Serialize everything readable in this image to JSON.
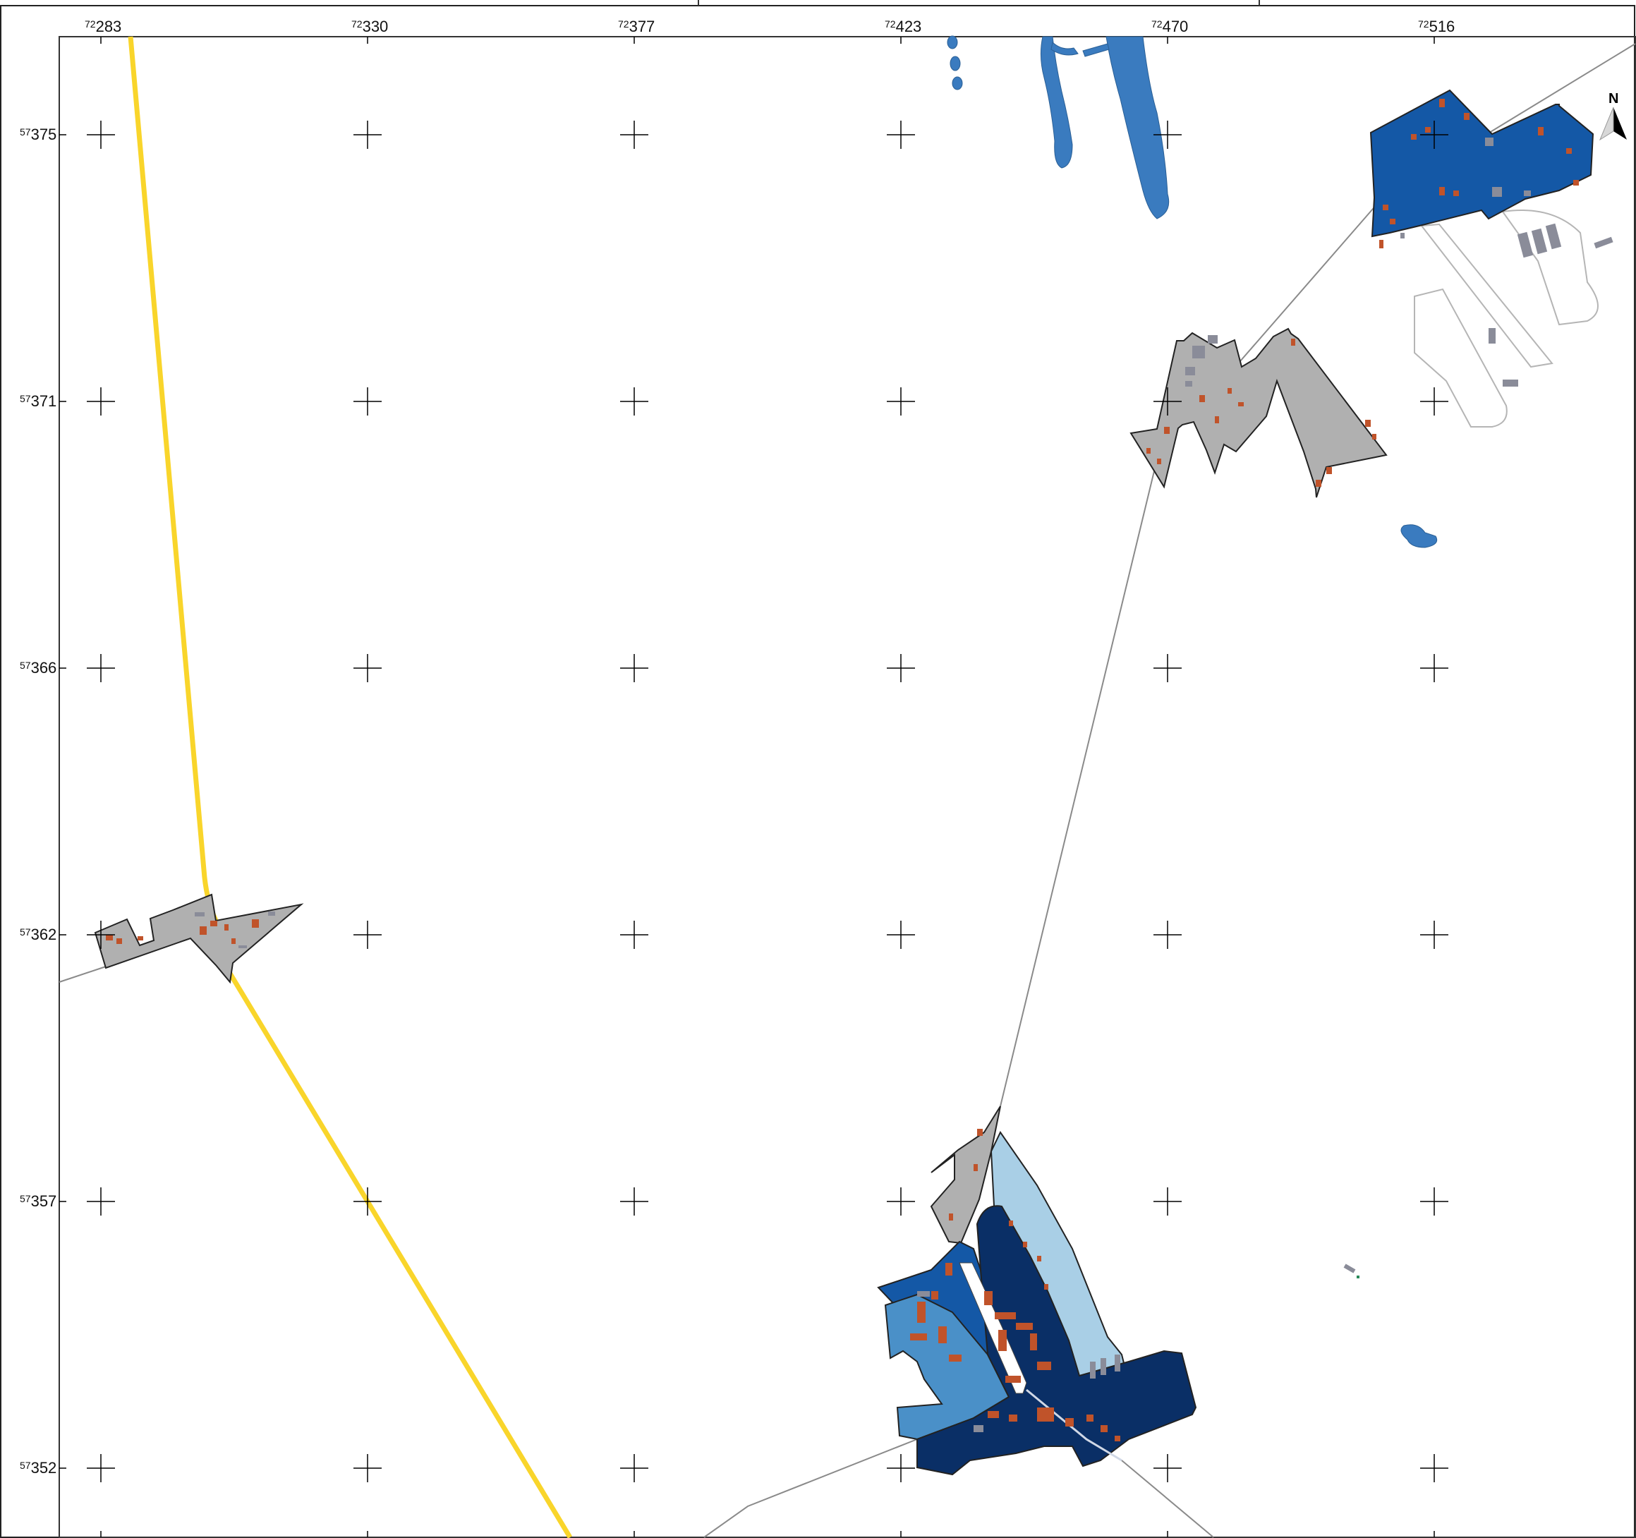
{
  "map": {
    "north_arrow_label": "N",
    "x_ticks": [
      {
        "prefix": "72",
        "value": "283"
      },
      {
        "prefix": "72",
        "value": "330"
      },
      {
        "prefix": "72",
        "value": "377"
      },
      {
        "prefix": "72",
        "value": "423"
      },
      {
        "prefix": "72",
        "value": "470"
      },
      {
        "prefix": "72",
        "value": "516"
      }
    ],
    "y_ticks": [
      {
        "prefix": "57",
        "value": "375"
      },
      {
        "prefix": "57",
        "value": "371"
      },
      {
        "prefix": "57",
        "value": "366"
      },
      {
        "prefix": "57",
        "value": "362"
      },
      {
        "prefix": "57",
        "value": "357"
      },
      {
        "prefix": "57",
        "value": "352"
      }
    ],
    "colors": {
      "highway": "#f9d52b",
      "water": "#3a7bbf",
      "built_gray": "#b0b0b0",
      "zone_light": "#a9cfe6",
      "zone_mid": "#4a90c8",
      "zone_blue": "#1458a6",
      "zone_dark": "#0a2f66",
      "building": "#c0532a",
      "hangar_gray": "#8a8c99",
      "road": "#8a8a8a"
    }
  }
}
